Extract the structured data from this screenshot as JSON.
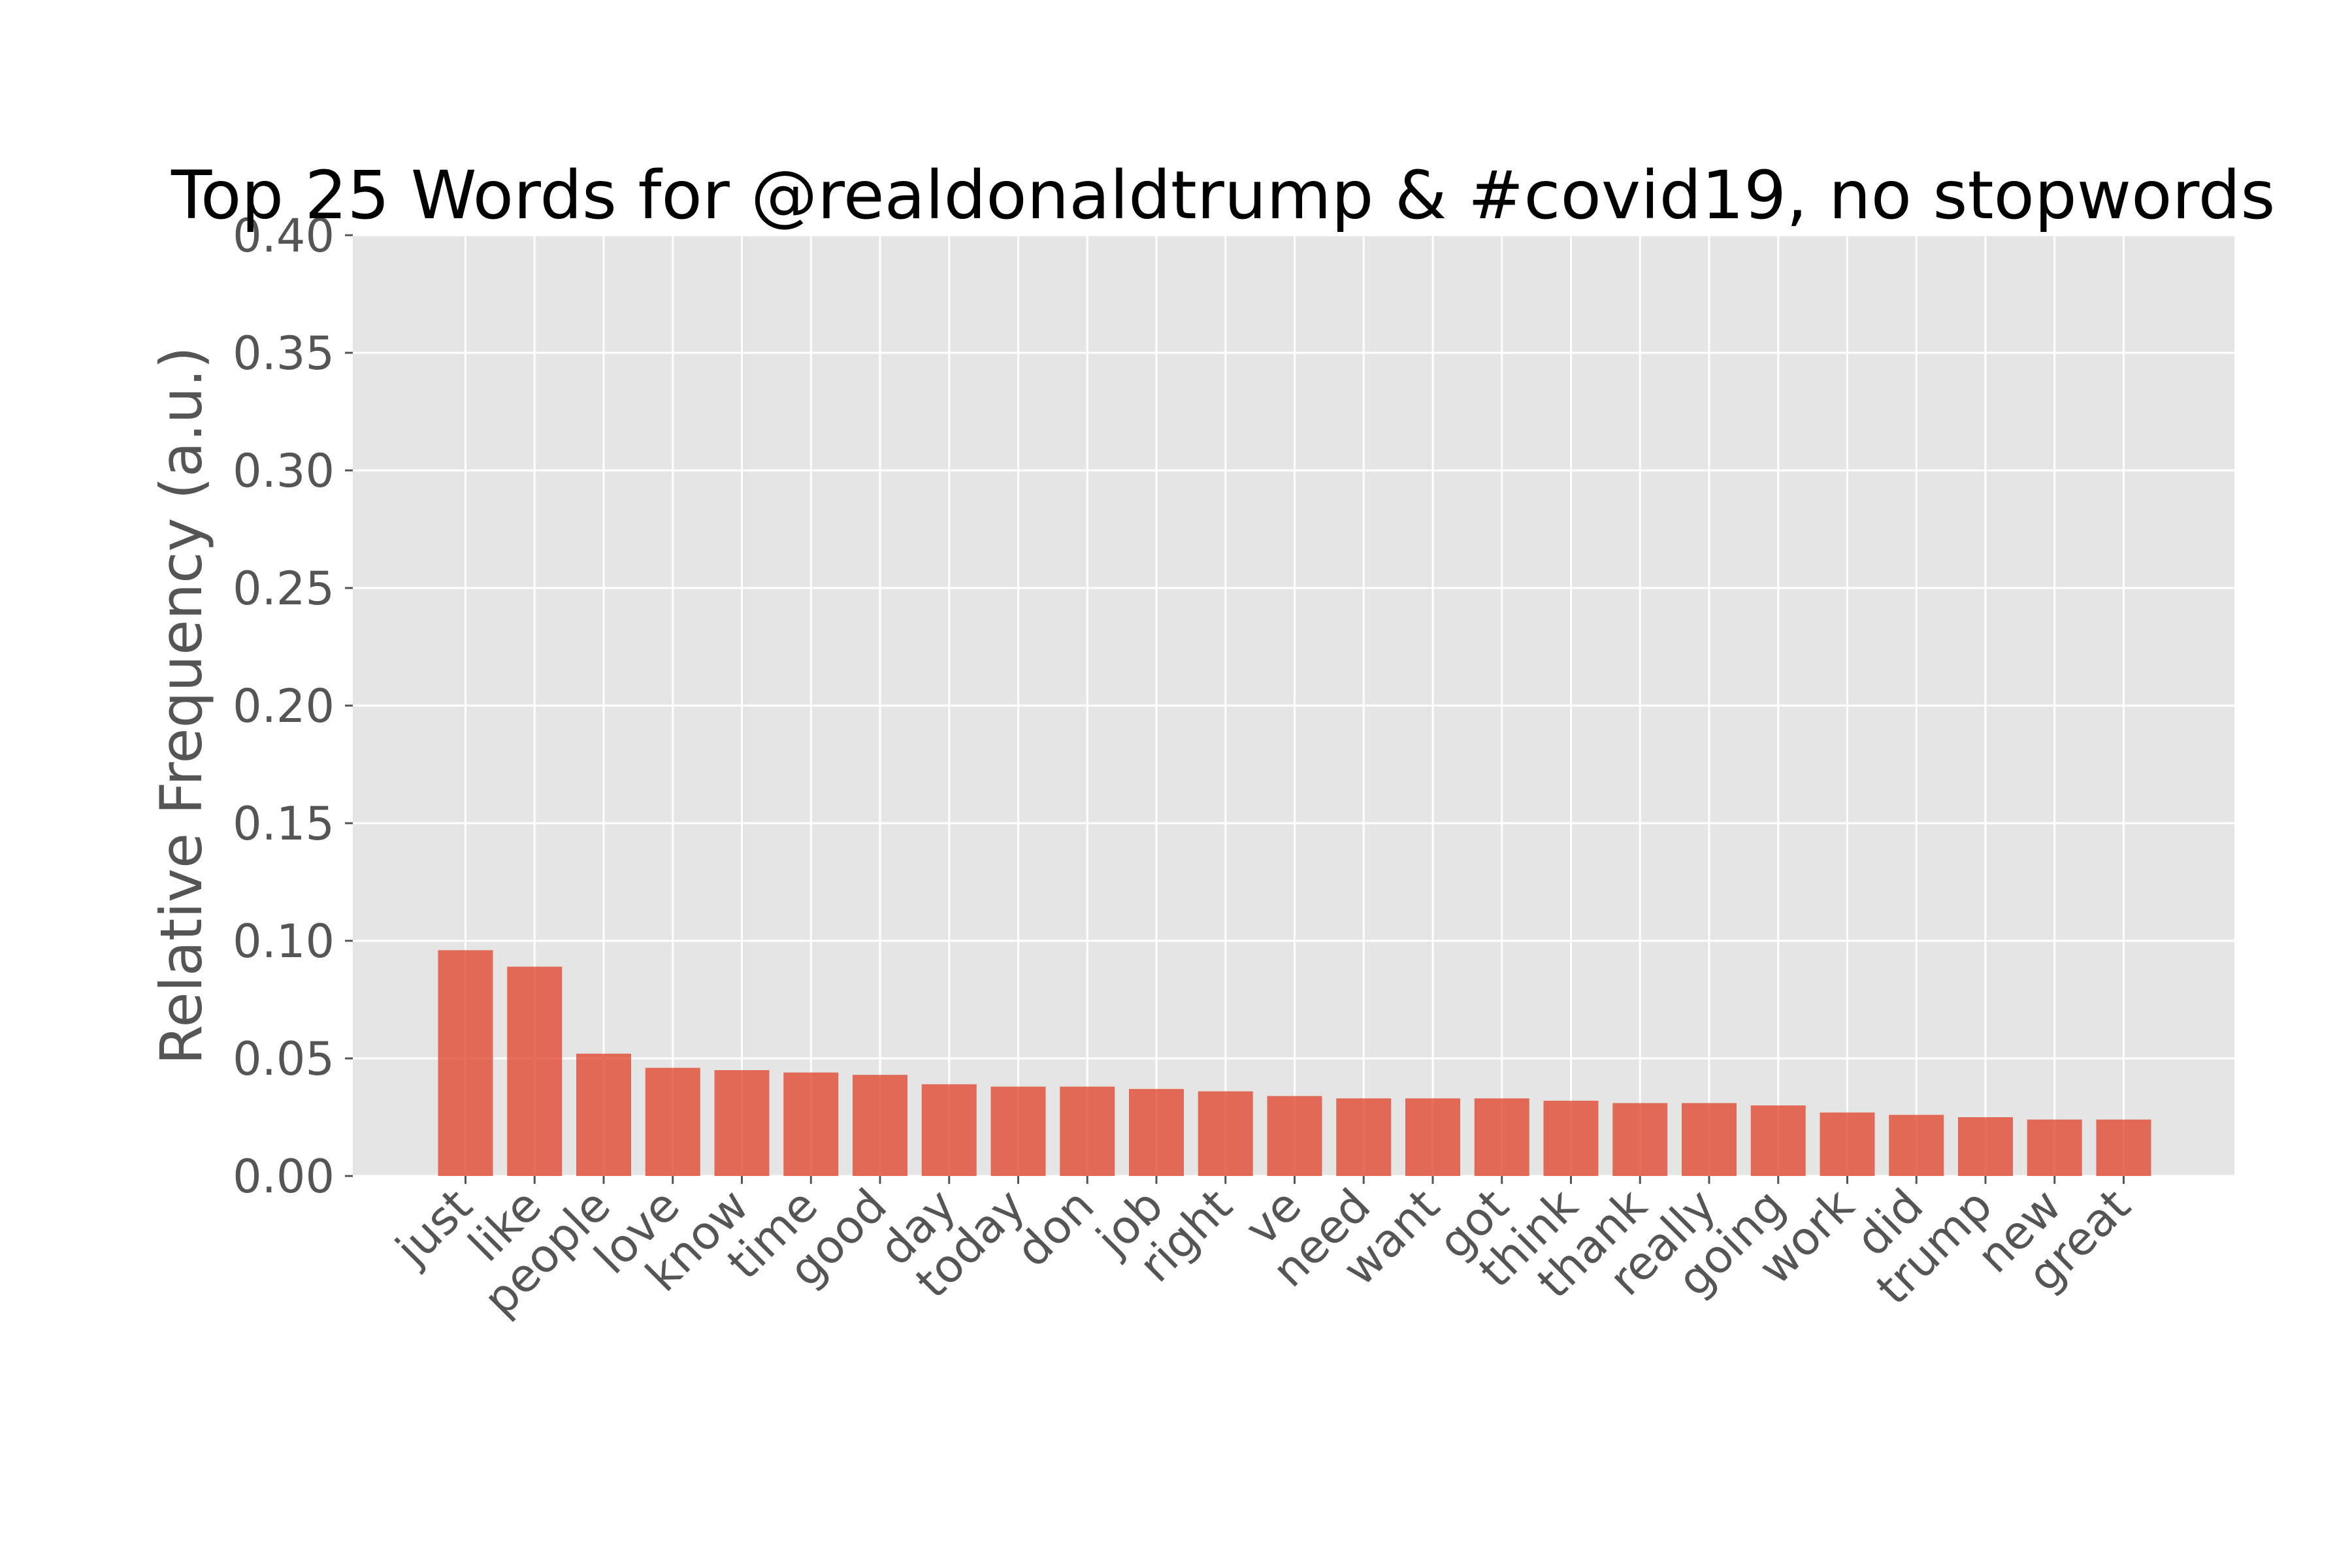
{
  "chart_data": {
    "type": "bar",
    "title": "Top 25 Words for @realdonaldtrump & #covid19, no stopwords",
    "xlabel": "",
    "ylabel": "Relative Frequency (a.u.)",
    "ylim": [
      0,
      0.4
    ],
    "yticks": [
      "0.00",
      "0.05",
      "0.10",
      "0.15",
      "0.20",
      "0.25",
      "0.30",
      "0.35",
      "0.40"
    ],
    "grid": true,
    "bar_color": "#e24a33",
    "background_color": "#e5e5e5",
    "grid_color": "#ffffff",
    "categories": [
      "just",
      "like",
      "people",
      "love",
      "know",
      "time",
      "good",
      "day",
      "today",
      "don",
      "job",
      "right",
      "ve",
      "need",
      "want",
      "got",
      "think",
      "thank",
      "really",
      "going",
      "work",
      "did",
      "trump",
      "new",
      "great"
    ],
    "values": [
      0.096,
      0.089,
      0.052,
      0.046,
      0.045,
      0.044,
      0.043,
      0.039,
      0.038,
      0.038,
      0.037,
      0.036,
      0.034,
      0.033,
      0.033,
      0.033,
      0.032,
      0.031,
      0.031,
      0.03,
      0.027,
      0.026,
      0.025,
      0.024,
      0.024
    ]
  }
}
